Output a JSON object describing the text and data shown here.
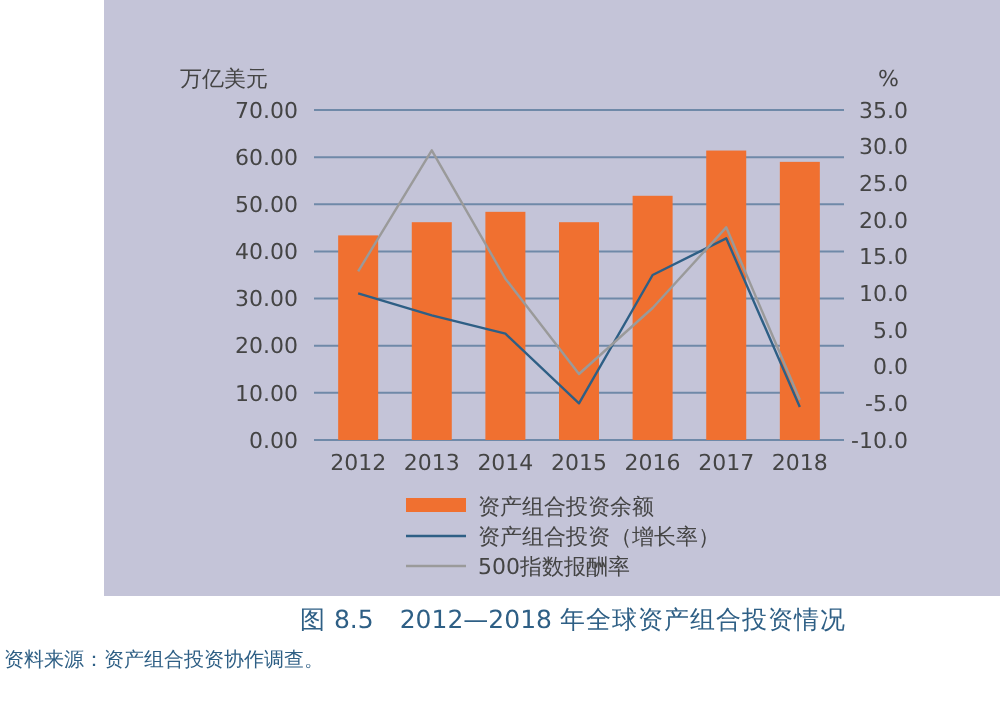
{
  "chart_data": {
    "type": "bar",
    "title": "图 8.5　2012—2018 年全球资产组合投资情况",
    "ylabel": "万亿美元",
    "y2label": "%",
    "annotations": [
      "资料来源：资产组合投资协作调查。"
    ],
    "categories": [
      "2012",
      "2013",
      "2014",
      "2015",
      "2016",
      "2017",
      "2018"
    ],
    "series": [
      {
        "name": "资产组合投资余额",
        "color": "#f07030",
        "values": [
          43.4,
          46.2,
          48.4,
          46.2,
          51.8,
          61.4,
          59.0
        ]
      },
      {
        "name": "资产组合投资（增长率）",
        "type": "line",
        "axis": "y2",
        "color": "#2e5f85",
        "values": [
          10.0,
          7.0,
          4.5,
          -5.0,
          12.5,
          17.5,
          -5.5
        ]
      },
      {
        "name": "500指数报酬率",
        "type": "line",
        "axis": "y2",
        "color": "#9a9a9a",
        "values": [
          13.0,
          29.5,
          12.0,
          -1.0,
          8.0,
          19.0,
          -4.5
        ]
      }
    ],
    "ylim": [
      0,
      70
    ],
    "yticks": [
      {
        "value": 0,
        "label": "0.00"
      },
      {
        "value": 10,
        "label": "10.00"
      },
      {
        "value": 20,
        "label": "20.00"
      },
      {
        "value": 30,
        "label": "30.00"
      },
      {
        "value": 40,
        "label": "40.00"
      },
      {
        "value": 50,
        "label": "50.00"
      },
      {
        "value": 60,
        "label": "60.00"
      },
      {
        "value": 70,
        "label": "70.00"
      }
    ],
    "y2lim": [
      -10,
      35
    ],
    "y2ticks": [
      {
        "value": -10,
        "label": "-10.0"
      },
      {
        "value": -5,
        "label": "-5.0"
      },
      {
        "value": 0,
        "label": "0.0"
      },
      {
        "value": 5,
        "label": "5.0"
      },
      {
        "value": 10,
        "label": "10.0"
      },
      {
        "value": 15,
        "label": "15.0"
      },
      {
        "value": 20,
        "label": "20.0"
      },
      {
        "value": 25,
        "label": "25.0"
      },
      {
        "value": 30,
        "label": "30.0"
      },
      {
        "value": 35,
        "label": "35.0"
      }
    ],
    "grid": "y",
    "legend": "bottom",
    "marker": "none"
  }
}
